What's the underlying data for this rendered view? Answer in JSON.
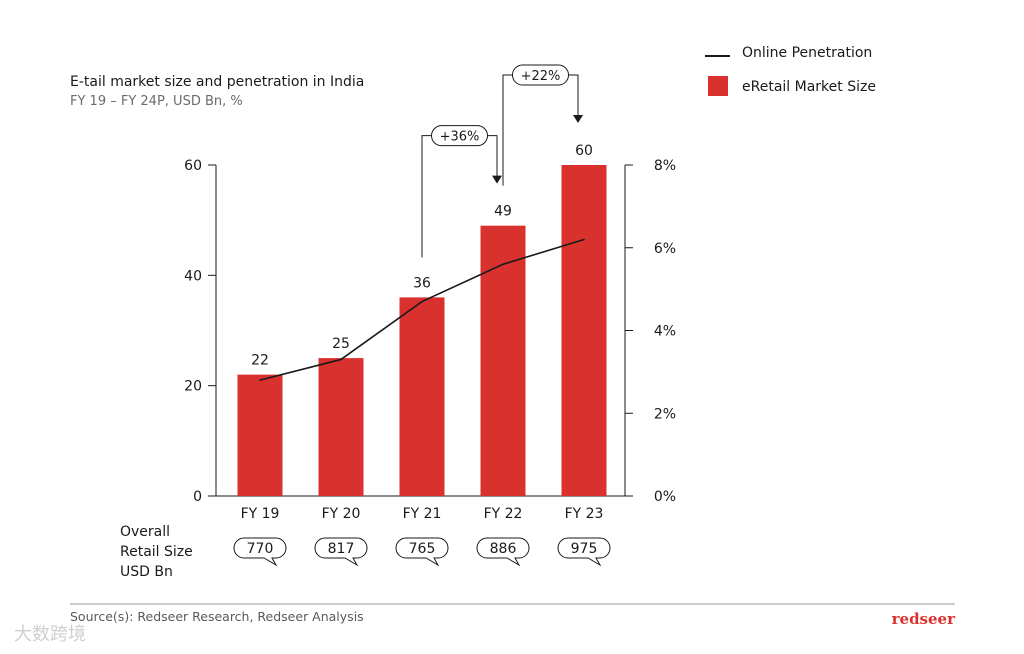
{
  "chart_data": {
    "type": "bar",
    "title": "E-tail market size and penetration in India",
    "subtitle": "FY 19 – FY 24P, USD Bn, %",
    "categories": [
      "FY 19",
      "FY 20",
      "FY 21",
      "FY 22",
      "FY 23"
    ],
    "series": [
      {
        "name": "eRetail Market Size",
        "type": "bar",
        "axis": "left",
        "values": [
          22,
          25,
          36,
          49,
          60
        ]
      },
      {
        "name": "Online Penetration",
        "type": "line",
        "axis": "right",
        "values": [
          2.8,
          3.3,
          4.7,
          5.6,
          6.2
        ]
      }
    ],
    "ylim": [
      0,
      60
    ],
    "y_ticks": [
      0,
      20,
      40,
      60
    ],
    "y2lim": [
      0,
      8
    ],
    "y2_ticks": [
      "0%",
      "2%",
      "4%",
      "6%",
      "8%"
    ],
    "y2_tick_values": [
      0,
      2,
      4,
      6,
      8
    ],
    "legend_placement": "top-right",
    "data_labels": [
      "22",
      "25",
      "36",
      "49",
      "60"
    ],
    "annotations": [
      {
        "text": "+36%",
        "from": "FY 21",
        "to": "FY 22"
      },
      {
        "text": "+22%",
        "from": "FY 22",
        "to": "FY 23"
      }
    ],
    "overall_retail": {
      "label_lines": [
        "Overall",
        "Retail Size",
        "USD Bn"
      ],
      "values": [
        "770",
        "817",
        "765",
        "886",
        "975"
      ]
    },
    "colors": {
      "bar": "#d9322e",
      "line": "#1a1a1a"
    }
  },
  "footer": {
    "source": "Source(s): Redseer Research, Redseer Analysis",
    "brand": "redseer",
    "watermark": "大数跨境"
  }
}
